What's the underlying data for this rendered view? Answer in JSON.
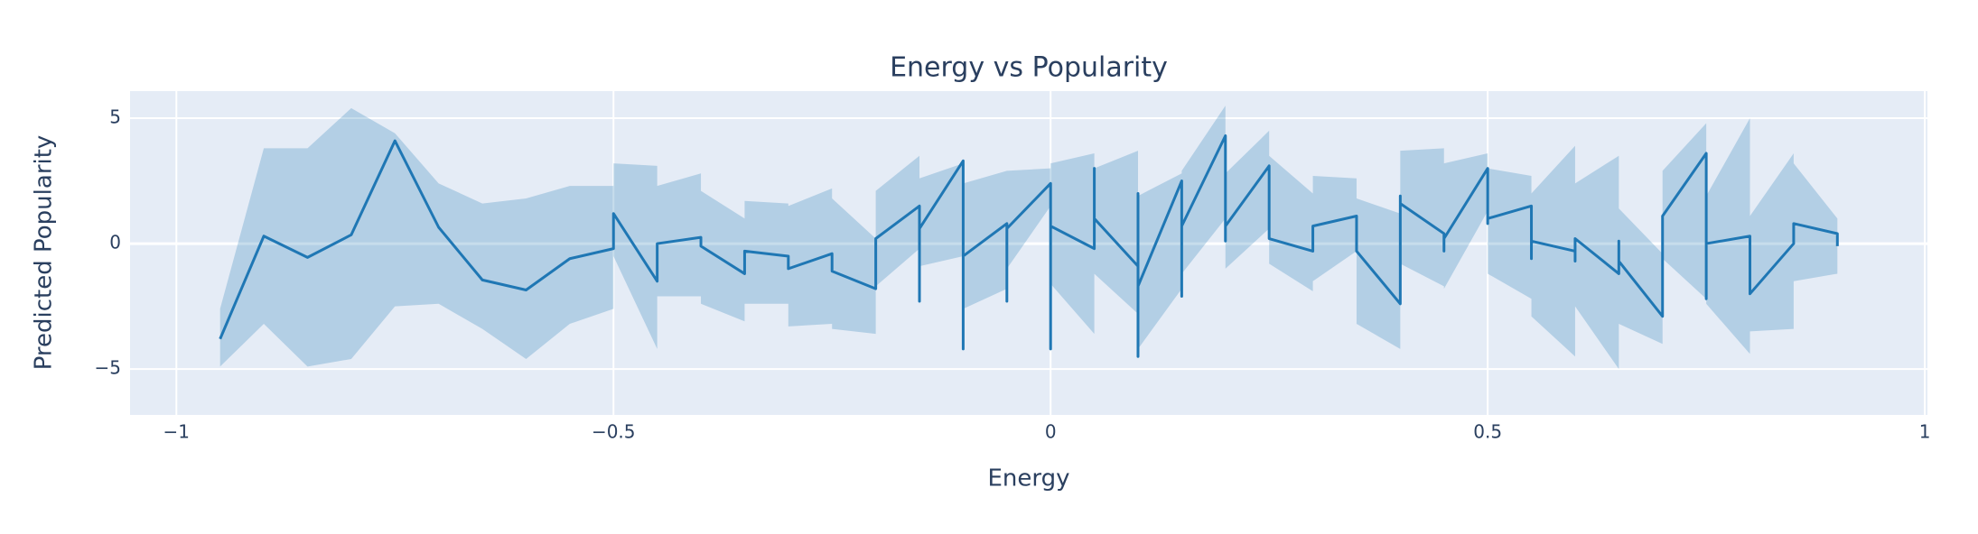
{
  "chart_data": {
    "type": "line",
    "title": "Energy vs Popularity",
    "x_label": "Energy",
    "y_label": "Predicted Popularity",
    "x": [
      -0.95,
      -0.9,
      -0.85,
      -0.8,
      -0.75,
      -0.7,
      -0.65,
      -0.6,
      -0.55,
      -0.5,
      -0.5,
      -0.45,
      -0.45,
      -0.4,
      -0.4,
      -0.35,
      -0.35,
      -0.3,
      -0.3,
      -0.25,
      -0.25,
      -0.2,
      -0.2,
      -0.15,
      -0.15,
      -0.15,
      -0.1,
      -0.1,
      -0.1,
      -0.05,
      -0.05,
      -0.05,
      0,
      0,
      0,
      0.05,
      0.05,
      0.05,
      0.1,
      0.1,
      0.1,
      0.1,
      0.15,
      0.15,
      0.15,
      0.2,
      0.2,
      0.2,
      0.25,
      0.25,
      0.3,
      0.3,
      0.35,
      0.35,
      0.4,
      0.4,
      0.4,
      0.45,
      0.45,
      0.45,
      0.5,
      0.5,
      0.5,
      0.55,
      0.55,
      0.55,
      0.6,
      0.6,
      0.6,
      0.65,
      0.65,
      0.65,
      0.7,
      0.7,
      0.75,
      0.75,
      0.75,
      0.8,
      0.8,
      0.85,
      0.85,
      0.9,
      0.9
    ],
    "values": [
      -3.8,
      0.3,
      -0.55,
      0.35,
      4.1,
      0.65,
      -1.45,
      -1.85,
      -0.6,
      -0.2,
      1.2,
      -1.5,
      0,
      0.25,
      -0.1,
      -1.2,
      -0.3,
      -0.5,
      -1.0,
      -0.4,
      -1.1,
      -1.8,
      0.2,
      1.5,
      -2.3,
      0.6,
      3.3,
      -4.2,
      -0.5,
      0.8,
      -2.3,
      0.6,
      2.4,
      -4.2,
      0.7,
      -0.2,
      3.0,
      1.0,
      -0.9,
      2.0,
      -4.5,
      -1.7,
      2.5,
      -2.1,
      0.7,
      4.3,
      0.1,
      0.7,
      3.1,
      0.2,
      -0.3,
      0.7,
      1.1,
      -0.3,
      -2.4,
      1.9,
      1.6,
      0.4,
      -0.3,
      0.2,
      3.0,
      0.8,
      1.0,
      1.5,
      -0.6,
      0.1,
      -0.3,
      -0.7,
      0.2,
      -1.2,
      0.1,
      -0.7,
      -2.9,
      1.1,
      3.6,
      -2.2,
      0.0,
      0.3,
      -2.0,
      0.0,
      0.8,
      0.4,
      -0.1
    ],
    "band_upper": [
      -2.6,
      3.8,
      3.8,
      5.4,
      4.4,
      2.4,
      1.6,
      1.8,
      2.3,
      2.3,
      3.2,
      3.1,
      2.3,
      2.8,
      2.1,
      1.0,
      1.7,
      1.6,
      1.5,
      2.2,
      1.8,
      0.2,
      2.1,
      3.5,
      2.8,
      2.6,
      3.2,
      2.8,
      2.4,
      2.9,
      2.7,
      2.9,
      3.0,
      3.1,
      3.2,
      3.6,
      3.4,
      3.0,
      3.7,
      2.2,
      2.0,
      1.9,
      2.8,
      2.5,
      2.9,
      5.5,
      3.8,
      2.8,
      4.5,
      3.5,
      2.0,
      2.7,
      2.6,
      1.8,
      1.2,
      3.7,
      3.7,
      3.8,
      2.8,
      3.2,
      3.6,
      2.6,
      3.0,
      2.7,
      2.3,
      2.0,
      3.9,
      2.2,
      2.4,
      3.5,
      1.3,
      1.4,
      -0.4,
      2.9,
      4.8,
      2.3,
      1.9,
      5.0,
      1.1,
      3.6,
      3.2,
      1.0,
      1.0
    ],
    "band_lower": [
      -4.9,
      -3.2,
      -4.9,
      -4.6,
      -2.5,
      -2.4,
      -3.4,
      -4.6,
      -3.2,
      -2.6,
      -0.5,
      -4.2,
      -2.1,
      -2.1,
      -2.4,
      -3.1,
      -2.4,
      -2.4,
      -3.3,
      -3.2,
      -3.4,
      -3.6,
      -1.7,
      -0.2,
      -1.5,
      -0.9,
      -0.5,
      -2.7,
      -2.6,
      -1.8,
      -1.6,
      -1.0,
      1.5,
      -1.5,
      -1.6,
      -3.6,
      -0.8,
      -1.2,
      -2.8,
      -4.3,
      -4.0,
      -4.2,
      -1.8,
      -2.0,
      -1.2,
      1.0,
      -1.7,
      -1.0,
      0.6,
      -0.8,
      -1.9,
      -1.5,
      -0.3,
      -3.2,
      -4.2,
      -0.4,
      -0.8,
      -1.7,
      -1.6,
      -1.8,
      1.3,
      -3.5,
      -1.2,
      -2.2,
      -2.4,
      -2.9,
      -4.5,
      -2.1,
      -2.5,
      -5.0,
      -2.0,
      -3.2,
      -4.0,
      -0.6,
      -2.2,
      -3.6,
      -2.4,
      -4.4,
      -3.5,
      -3.4,
      -1.5,
      -1.2,
      -0.8
    ],
    "color": "#1f77b4",
    "band_color": "rgba(31,119,180,0.25)",
    "xlim": [
      -1.053,
      1.003
    ],
    "ylim": [
      -6.83,
      6.08
    ],
    "xticks": [
      {
        "value": -1,
        "label": "−1"
      },
      {
        "value": -0.5,
        "label": "−0.5"
      },
      0,
      0.5,
      1
    ],
    "yticks": [
      {
        "value": -5,
        "label": "−5"
      },
      0,
      5
    ],
    "grid": true
  }
}
